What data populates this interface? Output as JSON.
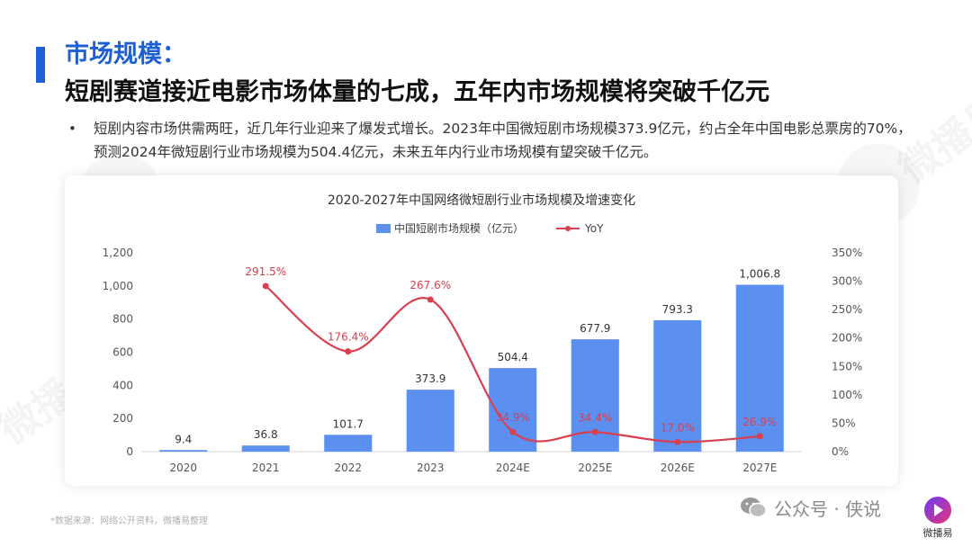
{
  "header": {
    "title_line1": "市场规模：",
    "title_line2": "短剧赛道接近电影市场体量的七成，五年内市场规模将突破千亿元"
  },
  "bullet": {
    "symbol": "•",
    "text": "短剧内容市场供需两旺，近几年行业迎来了爆发式增长。2023年中国微短剧市场规模373.9亿元，约占全年中国电影总票房的70%，预测2024年微短剧行业市场规模为504.4亿元，未来五年内行业市场规模有望突破千亿元。"
  },
  "footer": {
    "source": "*数据来源：网络公开资料，微播易整理",
    "wechat_label": "公众号 · 侠说",
    "logo_text": "微播易",
    "watermark_text": "微播易"
  },
  "colors": {
    "accent": "#1e5fd6",
    "bar": "#5b8ff0",
    "line": "#d9404f",
    "axis_text": "#555555"
  },
  "chart_data": {
    "type": "bar",
    "title": "2020-2027年中国网络微短剧行业市场规模及增速变化",
    "categories": [
      "2020",
      "2021",
      "2022",
      "2023",
      "2024E",
      "2025E",
      "2026E",
      "2027E"
    ],
    "series": [
      {
        "name": "中国短剧市场规模（亿元）",
        "type": "bar",
        "axis": "left",
        "values": [
          9.4,
          36.8,
          101.7,
          373.9,
          504.4,
          677.9,
          793.3,
          1006.8
        ],
        "labels": [
          "9.4",
          "36.8",
          "101.7",
          "373.9",
          "504.4",
          "677.9",
          "793.3",
          "1,006.8"
        ]
      },
      {
        "name": "YoY",
        "type": "line",
        "axis": "right",
        "values": [
          null,
          291.5,
          176.4,
          267.6,
          34.9,
          34.4,
          17.0,
          26.9
        ],
        "labels": [
          "",
          "291.5%",
          "176.4%",
          "267.6%",
          "34.9%",
          "34.4%",
          "17.0%",
          "26.9%"
        ]
      }
    ],
    "left_axis": {
      "min": 0,
      "max": 1200,
      "ticks": [
        0,
        200,
        400,
        600,
        800,
        1000,
        1200
      ],
      "tick_labels": [
        "0",
        "200",
        "400",
        "600",
        "800",
        "1,000",
        "1,200"
      ]
    },
    "right_axis": {
      "min": 0,
      "max": 350,
      "ticks": [
        0,
        50,
        100,
        150,
        200,
        250,
        300,
        350
      ],
      "tick_labels": [
        "0%",
        "50%",
        "100%",
        "150%",
        "200%",
        "250%",
        "300%",
        "350%"
      ]
    },
    "legend_position": "top-center",
    "grid": false
  }
}
